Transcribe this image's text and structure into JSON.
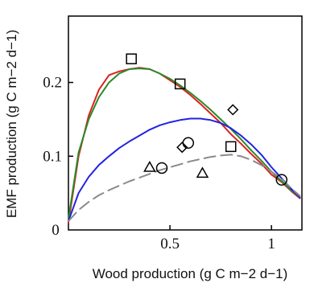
{
  "chart_data": {
    "type": "line",
    "title": "",
    "xlabel": "Wood production (g C m−2 d−1)",
    "ylabel": "EMF production (g C m−2 d−1)",
    "xlim": [
      0,
      1.15
    ],
    "ylim": [
      0,
      0.29
    ],
    "origin_label": "0",
    "x_ticks": [
      0,
      0.5,
      1
    ],
    "x_tick_labels": [
      "0",
      "0.5",
      "1"
    ],
    "y_ticks": [
      0.1,
      0.2
    ],
    "y_tick_labels": [
      "0.1",
      "0.2"
    ],
    "grid": false,
    "legend": "none",
    "series": [
      {
        "color": "#e02020",
        "style": "solid",
        "x": [
          0.0,
          0.05,
          0.1,
          0.15,
          0.2,
          0.25,
          0.3,
          0.35,
          0.4,
          0.45,
          0.5,
          0.55,
          0.6,
          0.65,
          0.7,
          0.75,
          0.8,
          0.85,
          0.9,
          0.95,
          1.0,
          1.05,
          1.1,
          1.14
        ],
        "y": [
          0.01,
          0.1,
          0.155,
          0.19,
          0.21,
          0.215,
          0.218,
          0.22,
          0.218,
          0.212,
          0.203,
          0.194,
          0.183,
          0.171,
          0.158,
          0.145,
          0.13,
          0.117,
          0.103,
          0.09,
          0.075,
          0.065,
          0.052,
          0.043
        ]
      },
      {
        "color": "#2a8a2a",
        "style": "solid",
        "x": [
          0.0,
          0.05,
          0.1,
          0.15,
          0.2,
          0.25,
          0.3,
          0.35,
          0.4,
          0.45,
          0.5,
          0.55,
          0.6,
          0.65,
          0.7,
          0.75,
          0.8,
          0.85,
          0.9,
          0.95,
          1.0,
          1.05,
          1.1,
          1.14
        ],
        "y": [
          0.015,
          0.105,
          0.15,
          0.18,
          0.2,
          0.212,
          0.218,
          0.219,
          0.218,
          0.212,
          0.205,
          0.196,
          0.186,
          0.175,
          0.163,
          0.15,
          0.137,
          0.123,
          0.108,
          0.094,
          0.079,
          0.066,
          0.053,
          0.044
        ]
      },
      {
        "color": "#2323e0",
        "style": "solid",
        "x": [
          0.0,
          0.05,
          0.1,
          0.15,
          0.2,
          0.25,
          0.3,
          0.35,
          0.4,
          0.45,
          0.5,
          0.55,
          0.6,
          0.65,
          0.7,
          0.75,
          0.8,
          0.85,
          0.9,
          0.95,
          1.0,
          1.05,
          1.1,
          1.14
        ],
        "y": [
          0.012,
          0.05,
          0.072,
          0.088,
          0.1,
          0.111,
          0.12,
          0.128,
          0.136,
          0.142,
          0.146,
          0.149,
          0.151,
          0.151,
          0.149,
          0.145,
          0.138,
          0.128,
          0.116,
          0.102,
          0.085,
          0.07,
          0.055,
          0.044
        ]
      },
      {
        "color": "#8a8a8a",
        "style": "dashed",
        "x": [
          0.0,
          0.05,
          0.1,
          0.15,
          0.2,
          0.25,
          0.3,
          0.35,
          0.4,
          0.45,
          0.5,
          0.55,
          0.6,
          0.65,
          0.7,
          0.75,
          0.8,
          0.85,
          0.9,
          0.95,
          1.0,
          1.05,
          1.1,
          1.14
        ],
        "y": [
          0.012,
          0.027,
          0.038,
          0.047,
          0.054,
          0.06,
          0.066,
          0.071,
          0.076,
          0.081,
          0.085,
          0.089,
          0.093,
          0.096,
          0.099,
          0.101,
          0.102,
          0.1,
          0.095,
          0.088,
          0.079,
          0.069,
          0.056,
          0.046
        ]
      }
    ],
    "markers": [
      {
        "shape": "square",
        "x": [
          0.31,
          0.55,
          0.8
        ],
        "y": [
          0.232,
          0.198,
          0.113
        ]
      },
      {
        "shape": "diamond",
        "x": [
          0.56,
          0.81
        ],
        "y": [
          0.112,
          0.163
        ]
      },
      {
        "shape": "circle",
        "x": [
          0.46,
          0.59,
          1.05
        ],
        "y": [
          0.084,
          0.118,
          0.068
        ]
      },
      {
        "shape": "triangle",
        "x": [
          0.4,
          0.66
        ],
        "y": [
          0.085,
          0.077
        ]
      }
    ]
  }
}
